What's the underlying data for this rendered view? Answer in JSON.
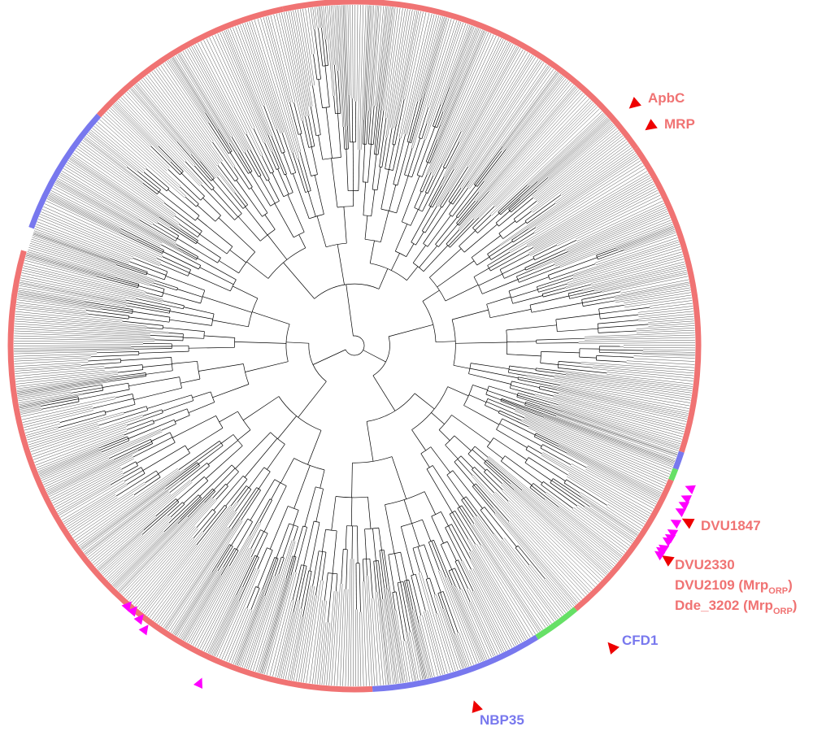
{
  "figure": {
    "colors": {
      "red": "#f07373",
      "blue": "#7878ee",
      "green": "#66e066",
      "magenta": "#ff00ff",
      "marker_red": "#ee0000",
      "branch": "#000000"
    },
    "clades": [
      {
        "name": "clade-1",
        "color": "red",
        "from_deg": -35,
        "to_deg": 18
      },
      {
        "name": "clade-2",
        "color": "blue",
        "from_deg": 18,
        "to_deg": 21
      },
      {
        "name": "clade-3",
        "color": "green",
        "from_deg": 21,
        "to_deg": 23
      },
      {
        "name": "clade-4",
        "color": "red",
        "from_deg": 23,
        "to_deg": 50
      },
      {
        "name": "clade-5",
        "color": "green",
        "from_deg": 50,
        "to_deg": 58
      },
      {
        "name": "clade-6",
        "color": "blue",
        "from_deg": 58,
        "to_deg": 87
      },
      {
        "name": "clade-7",
        "color": "red",
        "from_deg": 87,
        "to_deg": 196
      },
      {
        "name": "clade-8",
        "color": "blue",
        "from_deg": 200,
        "to_deg": 222
      },
      {
        "name": "clade-9",
        "color": "red",
        "from_deg": 222,
        "to_deg": 258
      },
      {
        "name": "clade-10",
        "color": "red",
        "from_deg": 258,
        "to_deg": 325
      }
    ],
    "labels": [
      {
        "key": "apbc",
        "text": "ApbC",
        "sub": "",
        "after": "",
        "color": "red"
      },
      {
        "key": "mrp",
        "text": "MRP",
        "sub": "",
        "after": "",
        "color": "red"
      },
      {
        "key": "dvu1847",
        "text": "DVU1847",
        "sub": "",
        "after": "",
        "color": "red"
      },
      {
        "key": "dvu2330",
        "text": "DVU2330",
        "sub": "",
        "after": "",
        "color": "red"
      },
      {
        "key": "dvu2109",
        "text": "DVU2109 (Mrp",
        "sub": "ORP",
        "after": ")",
        "color": "red"
      },
      {
        "key": "dde3202",
        "text": "Dde_3202 (Mrp",
        "sub": "ORP",
        "after": ")",
        "color": "red"
      },
      {
        "key": "cfd1",
        "text": "CFD1",
        "sub": "",
        "after": "",
        "color": "blue"
      },
      {
        "key": "nbp35",
        "text": "NBP35",
        "sub": "",
        "after": "",
        "color": "blue"
      }
    ],
    "markers": {
      "red": [
        "apbc",
        "mrp",
        "dvu1847",
        "dvu2330",
        "cfd1",
        "nbp35"
      ],
      "magenta_count": 16
    }
  }
}
